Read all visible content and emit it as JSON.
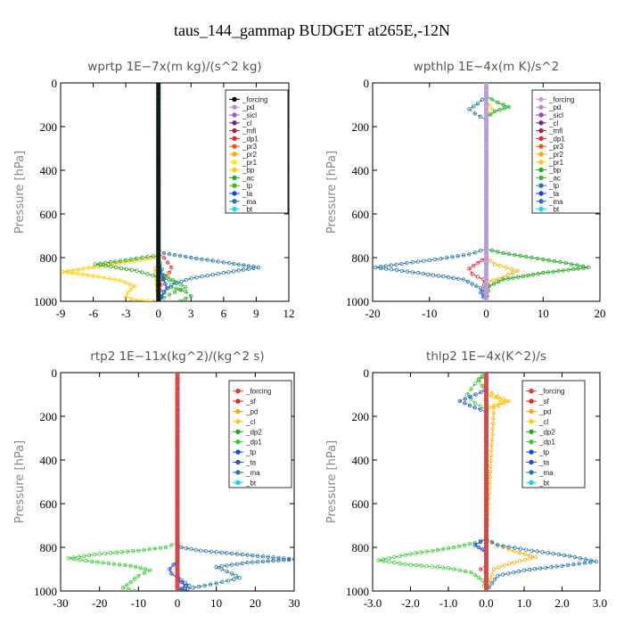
{
  "title": "taus_144_gammap  BUDGET at265E,-12N",
  "chart_data": [
    {
      "type": "line",
      "title": "wprtp   1E−7x(m kg)/(s^2 kg)",
      "ylabel": "Pressure [hPa]",
      "xlim": [
        -9,
        12
      ],
      "ylim": [
        1000,
        0
      ],
      "xticks": [
        -9,
        -6,
        -3,
        0,
        3,
        6,
        9,
        12
      ],
      "xtick_labels": [
        "-9",
        "-6",
        "-3",
        "0",
        "3",
        "6",
        "9",
        "12"
      ],
      "yticks": [
        0,
        200,
        400,
        600,
        800,
        1000
      ],
      "ytick_labels": [
        "0",
        "200",
        "400",
        "600",
        "800",
        "1000"
      ],
      "legend": "top-right",
      "legend_marker_style": "dot",
      "series": [
        {
          "name": "_forcing",
          "color": "#000000",
          "x": [
            0,
            0,
            0,
            0,
            0,
            0,
            0
          ],
          "y": [
            0,
            200,
            400,
            600,
            800,
            900,
            1000
          ]
        },
        {
          "name": "_pd",
          "color": "#bb88dd",
          "x": [
            0,
            0
          ],
          "y": [
            0,
            1000
          ]
        },
        {
          "name": "_sicl",
          "color": "#aa55cc",
          "x": [
            0,
            0
          ],
          "y": [
            0,
            1000
          ]
        },
        {
          "name": "_cl",
          "color": "#6a2a8a",
          "x": [
            0,
            0
          ],
          "y": [
            0,
            1000
          ]
        },
        {
          "name": "_mfl",
          "color": "#a02050",
          "x": [
            0,
            0
          ],
          "y": [
            0,
            1000
          ]
        },
        {
          "name": "_dp1",
          "color": "#ee2222",
          "x": [
            0,
            0,
            0.5,
            1.2,
            1,
            0.3,
            0
          ],
          "y": [
            0,
            780,
            800,
            845,
            870,
            900,
            1000
          ]
        },
        {
          "name": "_pr3",
          "color": "#ee5522",
          "x": [
            0,
            0,
            -0.2,
            0
          ],
          "y": [
            0,
            830,
            860,
            1000
          ]
        },
        {
          "name": "_pr2",
          "color": "#ffaa00",
          "x": [
            0,
            0,
            -0.3,
            0
          ],
          "y": [
            0,
            820,
            850,
            1000
          ]
        },
        {
          "name": "_pr1",
          "color": "#eeee00",
          "x": [
            0,
            0,
            -0.2,
            0
          ],
          "y": [
            0,
            830,
            860,
            1000
          ]
        },
        {
          "name": "_bp",
          "color": "#ffcc00",
          "x": [
            0,
            -0.3,
            -5.5,
            -8.8,
            -6.5,
            -3.5,
            -2.2,
            -2.8,
            -3,
            -2,
            -0.5
          ],
          "y": [
            780,
            800,
            840,
            865,
            880,
            905,
            930,
            960,
            980,
            995,
            1000
          ]
        },
        {
          "name": "_ac",
          "color": "#22aa22",
          "x": [
            0,
            -1.5,
            -3.5,
            -5.8,
            -2,
            0,
            1.5,
            1.2,
            2.5,
            3,
            2
          ],
          "y": [
            790,
            800,
            815,
            830,
            860,
            890,
            910,
            935,
            955,
            975,
            1000
          ]
        },
        {
          "name": "_tp",
          "color": "#33bb33",
          "x": [
            0,
            0.5,
            2.5,
            1,
            0
          ],
          "y": [
            800,
            880,
            935,
            970,
            1000
          ]
        },
        {
          "name": "_ta",
          "color": "#1144ee",
          "x": [
            0,
            0.3,
            0.8,
            0.3,
            0
          ],
          "y": [
            820,
            880,
            940,
            980,
            1000
          ]
        },
        {
          "name": "_ma",
          "color": "#2277aa",
          "x": [
            0,
            0.5,
            3,
            6.5,
            9.2,
            6,
            3,
            1.2,
            0.5,
            0
          ],
          "y": [
            760,
            780,
            800,
            825,
            845,
            870,
            895,
            925,
            955,
            1000
          ]
        },
        {
          "name": "_bt",
          "color": "#00e0e0",
          "x": [
            0,
            0
          ],
          "y": [
            0,
            1000
          ]
        }
      ]
    },
    {
      "type": "line",
      "title": "wpthlp   1E−4x(m K)/s^2",
      "ylabel": "Pressure [hPa]",
      "xlim": [
        -20,
        20
      ],
      "ylim": [
        1000,
        0
      ],
      "xticks": [
        -20,
        -10,
        0,
        10,
        20
      ],
      "xtick_labels": [
        "-20",
        "-10",
        "0",
        "10",
        "20"
      ],
      "yticks": [
        0,
        200,
        400,
        600,
        800,
        1000
      ],
      "ytick_labels": [
        "0",
        "200",
        "400",
        "600",
        "800",
        "1000"
      ],
      "legend": "top-right",
      "legend_marker_style": "dot",
      "series": [
        {
          "name": "_forcing",
          "color": "#cc99dd",
          "x": [
            0,
            0
          ],
          "y": [
            0,
            1000
          ]
        },
        {
          "name": "_pd",
          "color": "#bb88dd",
          "x": [
            0,
            0
          ],
          "y": [
            0,
            1000
          ]
        },
        {
          "name": "_sicl",
          "color": "#9944cc",
          "x": [
            0,
            0
          ],
          "y": [
            0,
            1000
          ]
        },
        {
          "name": "_cl",
          "color": "#6a2a8a",
          "x": [
            0,
            0
          ],
          "y": [
            0,
            1000
          ]
        },
        {
          "name": "_mfl",
          "color": "#a02050",
          "x": [
            0,
            0
          ],
          "y": [
            0,
            1000
          ]
        },
        {
          "name": "_dp1",
          "color": "#ee2222",
          "x": [
            0,
            0,
            -1.5,
            -3,
            -2.5,
            -0.5,
            0
          ],
          "y": [
            0,
            800,
            825,
            850,
            875,
            900,
            1000
          ]
        },
        {
          "name": "_pr3",
          "color": "#ee5522",
          "x": [
            0,
            0
          ],
          "y": [
            0,
            1000
          ]
        },
        {
          "name": "_pr2",
          "color": "#ffaa00",
          "x": [
            0,
            0,
            1.5,
            5.5,
            3,
            0.5,
            0
          ],
          "y": [
            0,
            800,
            830,
            860,
            890,
            910,
            1000
          ]
        },
        {
          "name": "_pr1",
          "color": "#ffcc00",
          "x": [
            0,
            0,
            1,
            0
          ],
          "y": [
            0,
            80,
            120,
            160
          ]
        },
        {
          "name": "_bp",
          "color": "#22aa22",
          "x": [
            0,
            2,
            4,
            1.5,
            0,
            0,
            3,
            8,
            14,
            18,
            10,
            3,
            0.5,
            0
          ],
          "y": [
            60,
            90,
            110,
            130,
            160,
            760,
            780,
            800,
            825,
            845,
            870,
            900,
            930,
            1000
          ]
        },
        {
          "name": "_ac",
          "color": "#33bb33",
          "x": [
            0,
            0
          ],
          "y": [
            0,
            1000
          ]
        },
        {
          "name": "_tp",
          "color": "#2277aa",
          "x": [
            0,
            -1.5,
            -3,
            -2,
            0,
            0,
            -3,
            -8,
            -14,
            -19.5,
            -12,
            -4,
            -1,
            0
          ],
          "y": [
            60,
            95,
            120,
            140,
            170,
            760,
            785,
            805,
            825,
            845,
            870,
            900,
            940,
            1000
          ]
        },
        {
          "name": "_ta",
          "color": "#1144ee",
          "x": [
            0,
            0
          ],
          "y": [
            0,
            1000
          ]
        },
        {
          "name": "_ma",
          "color": "#3366cc",
          "x": [
            0,
            0,
            -1,
            0
          ],
          "y": [
            0,
            930,
            960,
            1000
          ]
        },
        {
          "name": "_bt",
          "color": "#00e0e0",
          "x": [
            0,
            0
          ],
          "y": [
            0,
            1000
          ]
        }
      ]
    },
    {
      "type": "line",
      "title": "rtp2   1E−11x(kg^2)/(kg^2 s)",
      "ylabel": "Pressure [hPa]",
      "xlim": [
        -30,
        30
      ],
      "ylim": [
        1000,
        0
      ],
      "xticks": [
        -30,
        -20,
        -10,
        0,
        10,
        20,
        30
      ],
      "xtick_labels": [
        "-30",
        "-20",
        "-10",
        "0",
        "10",
        "20",
        "30"
      ],
      "yticks": [
        0,
        200,
        400,
        600,
        800,
        1000
      ],
      "ytick_labels": [
        "0",
        "200",
        "400",
        "600",
        "800",
        "1000"
      ],
      "legend": "top-right",
      "legend_marker_style": "dot",
      "series": [
        {
          "name": "_forcing",
          "color": "#ee3333",
          "x": [
            0,
            0
          ],
          "y": [
            0,
            1000
          ]
        },
        {
          "name": "_sf",
          "color": "#ee2222",
          "x": [
            0,
            0
          ],
          "y": [
            0,
            1000
          ]
        },
        {
          "name": "_pd",
          "color": "#ffaa00",
          "x": [
            0,
            0
          ],
          "y": [
            0,
            1000
          ]
        },
        {
          "name": "_cl",
          "color": "#ffcc00",
          "x": [
            0,
            0
          ],
          "y": [
            0,
            1000
          ]
        },
        {
          "name": "_dp2",
          "color": "#22aa22",
          "x": [
            0,
            0
          ],
          "y": [
            0,
            1000
          ]
        },
        {
          "name": "_dp1",
          "color": "#33cc33",
          "x": [
            0,
            -3,
            -10,
            -20,
            -28,
            -22,
            -12,
            -7,
            -10,
            -12,
            -14,
            -11
          ],
          "y": [
            780,
            800,
            815,
            830,
            850,
            865,
            885,
            905,
            930,
            960,
            985,
            1000
          ]
        },
        {
          "name": "_tp",
          "color": "#1144ee",
          "x": [
            0,
            0,
            -1,
            -2,
            -1.5,
            0,
            1,
            2,
            1,
            0
          ],
          "y": [
            0,
            860,
            880,
            900,
            920,
            940,
            960,
            975,
            990,
            1000
          ]
        },
        {
          "name": "_ta",
          "color": "#2255cc",
          "x": [
            0,
            0,
            1,
            3,
            2,
            0
          ],
          "y": [
            0,
            920,
            950,
            975,
            990,
            1000
          ]
        },
        {
          "name": "_ma",
          "color": "#2277aa",
          "x": [
            0,
            1,
            6,
            18,
            30,
            18,
            10,
            14,
            16,
            10,
            4,
            0
          ],
          "y": [
            780,
            800,
            815,
            835,
            855,
            870,
            890,
            920,
            940,
            965,
            985,
            1000
          ]
        },
        {
          "name": "_bt",
          "color": "#00e0e0",
          "x": [
            0,
            0
          ],
          "y": [
            0,
            1000
          ]
        }
      ]
    },
    {
      "type": "line",
      "title": "thlp2   1E−4x(K^2)/s",
      "ylabel": "Pressure [hPa]",
      "xlim": [
        -3,
        3
      ],
      "ylim": [
        1000,
        0
      ],
      "xticks": [
        -3,
        -2,
        -1,
        0,
        1,
        2,
        3
      ],
      "xtick_labels": [
        "-3.0",
        "-2.0",
        "-1.0",
        "0.0",
        "1.0",
        "2.0",
        "3.0"
      ],
      "yticks": [
        0,
        200,
        400,
        600,
        800,
        1000
      ],
      "ytick_labels": [
        "0",
        "200",
        "400",
        "600",
        "800",
        "1000"
      ],
      "legend": "top-right",
      "legend_marker_style": "dot",
      "series": [
        {
          "name": "_forcing",
          "color": "#ee3333",
          "x": [
            0,
            0
          ],
          "y": [
            0,
            1000
          ]
        },
        {
          "name": "_sf",
          "color": "#ee2222",
          "x": [
            0,
            0,
            -0.15,
            0
          ],
          "y": [
            0,
            880,
            900,
            920
          ]
        },
        {
          "name": "_pd",
          "color": "#ffaa00",
          "x": [
            0,
            0,
            0.3,
            0.6,
            0.2,
            0,
            0.3,
            0.6,
            1.3,
            0.6,
            0.2,
            0
          ],
          "y": [
            0,
            80,
            110,
            130,
            160,
            770,
            790,
            810,
            845,
            875,
            900,
            1000
          ]
        },
        {
          "name": "_cl",
          "color": "#ffcc00",
          "x": [
            0,
            0,
            0.5,
            0.2,
            0,
            0
          ],
          "y": [
            0,
            100,
            130,
            150,
            170,
            1000
          ]
        },
        {
          "name": "_dp2",
          "color": "#22aa22",
          "x": [
            0,
            -0.2,
            -0.1,
            0,
            0
          ],
          "y": [
            0,
            30,
            60,
            100,
            1000
          ]
        },
        {
          "name": "_dp1",
          "color": "#33cc33",
          "x": [
            0,
            -0.1,
            -0.3,
            -0.5,
            -0.3,
            0,
            0,
            -0.3,
            -1,
            -2,
            -2.85,
            -2,
            -1,
            -0.4,
            -0.1,
            0
          ],
          "y": [
            0,
            20,
            50,
            100,
            140,
            170,
            760,
            780,
            805,
            830,
            860,
            880,
            895,
            915,
            950,
            1000
          ]
        },
        {
          "name": "_tp",
          "color": "#1144ee",
          "x": [
            0,
            -0.3,
            -0.1,
            0
          ],
          "y": [
            760,
            790,
            810,
            830
          ]
        },
        {
          "name": "_ta",
          "color": "#2255cc",
          "x": [
            0,
            -0.7,
            -0.3,
            0,
            0
          ],
          "y": [
            80,
            130,
            160,
            180,
            1000
          ]
        },
        {
          "name": "_ma",
          "color": "#2277aa",
          "x": [
            0,
            0.3,
            1.2,
            2.2,
            2.9,
            2,
            1,
            0.3,
            0
          ],
          "y": [
            760,
            790,
            815,
            840,
            865,
            885,
            905,
            930,
            1000
          ]
        },
        {
          "name": "_bt",
          "color": "#00e0e0",
          "x": [
            0,
            0
          ],
          "y": [
            0,
            1000
          ]
        }
      ]
    }
  ]
}
